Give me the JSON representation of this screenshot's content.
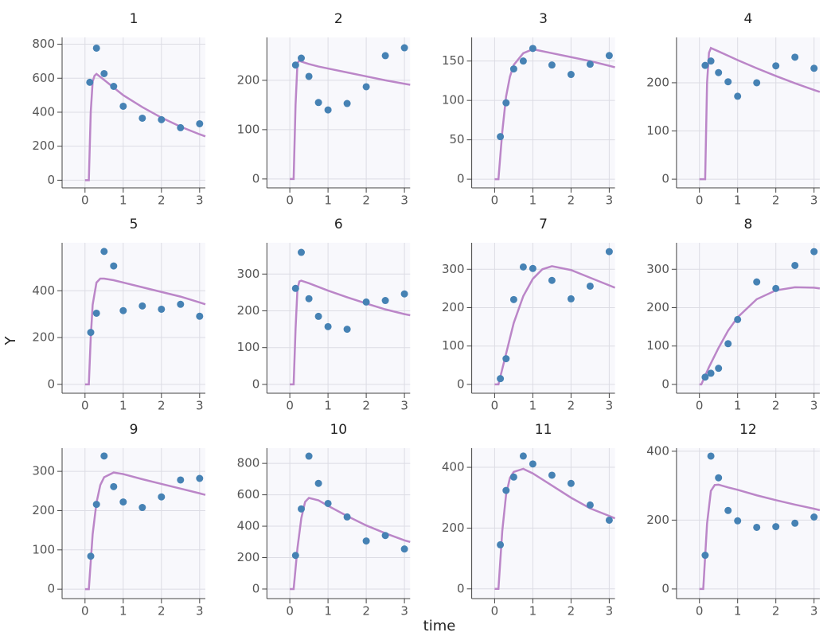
{
  "axis_labels": {
    "x": "time",
    "y": "Y"
  },
  "chart_data": [
    {
      "type": "scatter",
      "title": "1",
      "x": [
        0.125,
        0.3,
        0.5,
        0.75,
        1,
        1.5,
        2,
        2.5,
        3
      ],
      "values": [
        576,
        777,
        627,
        552,
        435,
        365,
        356,
        309,
        332
      ],
      "color": "#4682b4",
      "line": {
        "x": [
          0,
          0.1,
          0.15,
          0.2,
          0.25,
          0.3,
          0.5,
          0.75,
          1,
          1.5,
          2,
          2.5,
          3,
          3.15
        ],
        "values": [
          0,
          0,
          400,
          580,
          615,
          625,
          590,
          545,
          500,
          430,
          368,
          315,
          270,
          258
        ],
        "color": "#bb86c8"
      },
      "xlim": [
        -0.6,
        3.15
      ],
      "xticks": [
        0,
        1,
        2,
        3
      ],
      "ylim": [
        -45,
        840
      ],
      "yticks": [
        0,
        200,
        400,
        600,
        800
      ],
      "grid": true
    },
    {
      "type": "scatter",
      "title": "2",
      "x": [
        0.15,
        0.3,
        0.5,
        0.75,
        1,
        1.5,
        2,
        2.5,
        3
      ],
      "values": [
        231,
        245,
        208,
        155,
        140,
        153,
        187,
        250,
        266
      ],
      "color": "#4682b4",
      "line": {
        "x": [
          0,
          0.1,
          0.15,
          0.2,
          0.25,
          0.3,
          0.5,
          0.75,
          1,
          1.5,
          2,
          2.5,
          3,
          3.15
        ],
        "values": [
          0,
          0,
          150,
          235,
          240,
          238,
          233,
          228,
          224,
          216,
          208,
          200,
          193,
          191
        ],
        "color": "#bb86c8"
      },
      "xlim": [
        -0.6,
        3.15
      ],
      "xticks": [
        0,
        1,
        2,
        3
      ],
      "ylim": [
        -18,
        287
      ],
      "yticks": [
        0,
        100,
        200
      ],
      "grid": true
    },
    {
      "type": "scatter",
      "title": "3",
      "x": [
        0.15,
        0.3,
        0.5,
        0.75,
        1,
        1.5,
        2,
        2.5,
        3
      ],
      "values": [
        54,
        97,
        140,
        150,
        166,
        145,
        133,
        146,
        157
      ],
      "color": "#4682b4",
      "line": {
        "x": [
          0,
          0.1,
          0.2,
          0.3,
          0.4,
          0.5,
          0.75,
          1,
          1.5,
          2,
          2.5,
          3,
          3.15
        ],
        "values": [
          0,
          0,
          60,
          105,
          130,
          145,
          160,
          165,
          160,
          155,
          150,
          144,
          142
        ],
        "color": "#bb86c8"
      },
      "xlim": [
        -0.6,
        3.15
      ],
      "xticks": [
        0,
        1,
        2,
        3
      ],
      "ylim": [
        -11,
        180
      ],
      "yticks": [
        0,
        50,
        100,
        150
      ],
      "grid": true
    },
    {
      "type": "scatter",
      "title": "4",
      "x": [
        0.15,
        0.3,
        0.5,
        0.75,
        1,
        1.5,
        2,
        2.5,
        3
      ],
      "values": [
        236,
        245,
        221,
        202,
        172,
        200,
        235,
        253,
        230
      ],
      "color": "#4682b4",
      "line": {
        "x": [
          0,
          0.15,
          0.2,
          0.25,
          0.3,
          0.5,
          0.75,
          1,
          1.5,
          2,
          2.5,
          3,
          3.15
        ],
        "values": [
          0,
          0,
          200,
          262,
          272,
          265,
          256,
          247,
          230,
          214,
          199,
          185,
          181
        ],
        "color": "#bb86c8"
      },
      "xlim": [
        -0.6,
        3.15
      ],
      "xticks": [
        0,
        1,
        2,
        3
      ],
      "ylim": [
        -18,
        294
      ],
      "yticks": [
        0,
        100,
        200
      ],
      "grid": true
    },
    {
      "type": "scatter",
      "title": "5",
      "x": [
        0.15,
        0.3,
        0.5,
        0.75,
        1,
        1.5,
        2,
        2.5,
        3
      ],
      "values": [
        222,
        304,
        568,
        506,
        315,
        335,
        321,
        342,
        291
      ],
      "color": "#4682b4",
      "line": {
        "x": [
          0,
          0.1,
          0.15,
          0.2,
          0.3,
          0.4,
          0.5,
          0.75,
          1,
          1.5,
          2,
          2.5,
          3,
          3.15
        ],
        "values": [
          0,
          0,
          200,
          340,
          435,
          452,
          452,
          445,
          435,
          415,
          395,
          375,
          350,
          342
        ],
        "color": "#bb86c8"
      },
      "xlim": [
        -0.6,
        3.15
      ],
      "xticks": [
        0,
        1,
        2,
        3
      ],
      "ylim": [
        -38,
        605
      ],
      "yticks": [
        0,
        200,
        400
      ],
      "grid": true
    },
    {
      "type": "scatter",
      "title": "6",
      "x": [
        0.15,
        0.3,
        0.5,
        0.75,
        1,
        1.5,
        2,
        2.5,
        3
      ],
      "values": [
        261,
        359,
        233,
        185,
        157,
        150,
        224,
        228,
        246
      ],
      "color": "#4682b4",
      "line": {
        "x": [
          0,
          0.1,
          0.15,
          0.2,
          0.25,
          0.3,
          0.5,
          0.75,
          1,
          1.5,
          2,
          2.5,
          3,
          3.15
        ],
        "values": [
          0,
          0,
          150,
          260,
          280,
          282,
          275,
          265,
          255,
          237,
          220,
          204,
          191,
          188
        ],
        "color": "#bb86c8"
      },
      "xlim": [
        -0.6,
        3.15
      ],
      "xticks": [
        0,
        1,
        2,
        3
      ],
      "ylim": [
        -24,
        385
      ],
      "yticks": [
        0,
        100,
        200,
        300
      ],
      "grid": true
    },
    {
      "type": "scatter",
      "title": "7",
      "x": [
        0.15,
        0.3,
        0.5,
        0.75,
        1,
        1.5,
        2,
        2.5,
        3
      ],
      "values": [
        15,
        67,
        221,
        306,
        302,
        271,
        223,
        256,
        346
      ],
      "color": "#4682b4",
      "line": {
        "x": [
          0,
          0.1,
          0.2,
          0.3,
          0.5,
          0.75,
          1,
          1.25,
          1.5,
          2,
          2.5,
          3,
          3.15
        ],
        "values": [
          0,
          0,
          40,
          80,
          160,
          230,
          275,
          300,
          308,
          298,
          278,
          258,
          252
        ],
        "color": "#bb86c8"
      },
      "xlim": [
        -0.6,
        3.15
      ],
      "xticks": [
        0,
        1,
        2,
        3
      ],
      "ylim": [
        -23,
        369
      ],
      "yticks": [
        0,
        100,
        200,
        300
      ],
      "grid": true
    },
    {
      "type": "scatter",
      "title": "8",
      "x": [
        0.15,
        0.3,
        0.5,
        0.75,
        1,
        1.5,
        2,
        2.5,
        3
      ],
      "values": [
        19,
        29,
        42,
        106,
        169,
        267,
        250,
        310,
        346
      ],
      "color": "#4682b4",
      "line": {
        "x": [
          0,
          0.05,
          0.25,
          0.5,
          0.75,
          1,
          1.5,
          2,
          2.5,
          3,
          3.15
        ],
        "values": [
          0,
          0,
          45,
          95,
          140,
          175,
          222,
          245,
          253,
          252,
          250
        ],
        "color": "#bb86c8"
      },
      "xlim": [
        -0.6,
        3.15
      ],
      "xticks": [
        0,
        1,
        2,
        3
      ],
      "ylim": [
        -23,
        369
      ],
      "yticks": [
        0,
        100,
        200,
        300
      ],
      "grid": true
    },
    {
      "type": "scatter",
      "title": "9",
      "x": [
        0.15,
        0.3,
        0.5,
        0.75,
        1,
        1.5,
        2,
        2.5,
        3
      ],
      "values": [
        84,
        216,
        339,
        261,
        222,
        208,
        235,
        278,
        282
      ],
      "color": "#4682b4",
      "line": {
        "x": [
          0,
          0.1,
          0.2,
          0.3,
          0.4,
          0.5,
          0.75,
          1,
          1.5,
          2,
          2.5,
          3,
          3.15
        ],
        "values": [
          0,
          0,
          140,
          220,
          265,
          285,
          297,
          293,
          280,
          268,
          256,
          244,
          240
        ],
        "color": "#bb86c8"
      },
      "xlim": [
        -0.6,
        3.15
      ],
      "xticks": [
        0,
        1,
        2,
        3
      ],
      "ylim": [
        -24,
        359
      ],
      "yticks": [
        0,
        100,
        200,
        300
      ],
      "grid": true
    },
    {
      "type": "scatter",
      "title": "10",
      "x": [
        0.15,
        0.3,
        0.5,
        0.75,
        1,
        1.5,
        2,
        2.5,
        3
      ],
      "values": [
        214,
        510,
        846,
        673,
        545,
        459,
        306,
        341,
        255
      ],
      "color": "#4682b4",
      "line": {
        "x": [
          0,
          0.1,
          0.2,
          0.3,
          0.4,
          0.5,
          0.75,
          1,
          1.5,
          2,
          2.5,
          3,
          3.15
        ],
        "values": [
          0,
          0,
          260,
          450,
          555,
          580,
          565,
          530,
          465,
          405,
          355,
          310,
          300
        ],
        "color": "#bb86c8"
      },
      "xlim": [
        -0.6,
        3.15
      ],
      "xticks": [
        0,
        1,
        2,
        3
      ],
      "ylim": [
        -61,
        897
      ],
      "yticks": [
        0,
        200,
        400,
        600,
        800
      ],
      "grid": true
    },
    {
      "type": "scatter",
      "title": "11",
      "x": [
        0.15,
        0.3,
        0.5,
        0.75,
        1,
        1.5,
        2,
        2.5,
        3
      ],
      "values": [
        145,
        324,
        368,
        437,
        411,
        374,
        347,
        276,
        226
      ],
      "color": "#4682b4",
      "line": {
        "x": [
          0,
          0.1,
          0.2,
          0.3,
          0.4,
          0.5,
          0.75,
          1,
          1.5,
          2,
          2.5,
          3,
          3.15
        ],
        "values": [
          0,
          0,
          190,
          310,
          365,
          385,
          395,
          380,
          340,
          300,
          265,
          240,
          232
        ],
        "color": "#bb86c8"
      },
      "xlim": [
        -0.6,
        3.15
      ],
      "xticks": [
        0,
        1,
        2,
        3
      ],
      "ylim": [
        -32,
        463
      ],
      "yticks": [
        0,
        200,
        400
      ],
      "grid": true
    },
    {
      "type": "scatter",
      "title": "12",
      "x": [
        0.15,
        0.3,
        0.5,
        0.75,
        1,
        1.5,
        2,
        2.5,
        3
      ],
      "values": [
        98,
        386,
        323,
        228,
        198,
        179,
        181,
        191,
        209
      ],
      "color": "#4682b4",
      "line": {
        "x": [
          0,
          0.1,
          0.2,
          0.3,
          0.4,
          0.5,
          0.75,
          1,
          1.5,
          2,
          2.5,
          3,
          3.15
        ],
        "values": [
          0,
          0,
          190,
          285,
          302,
          303,
          295,
          288,
          272,
          258,
          245,
          233,
          229
        ],
        "color": "#bb86c8"
      },
      "xlim": [
        -0.6,
        3.15
      ],
      "xticks": [
        0,
        1,
        2,
        3
      ],
      "ylim": [
        -28,
        409
      ],
      "yticks": [
        0,
        200,
        400
      ],
      "grid": true
    }
  ]
}
